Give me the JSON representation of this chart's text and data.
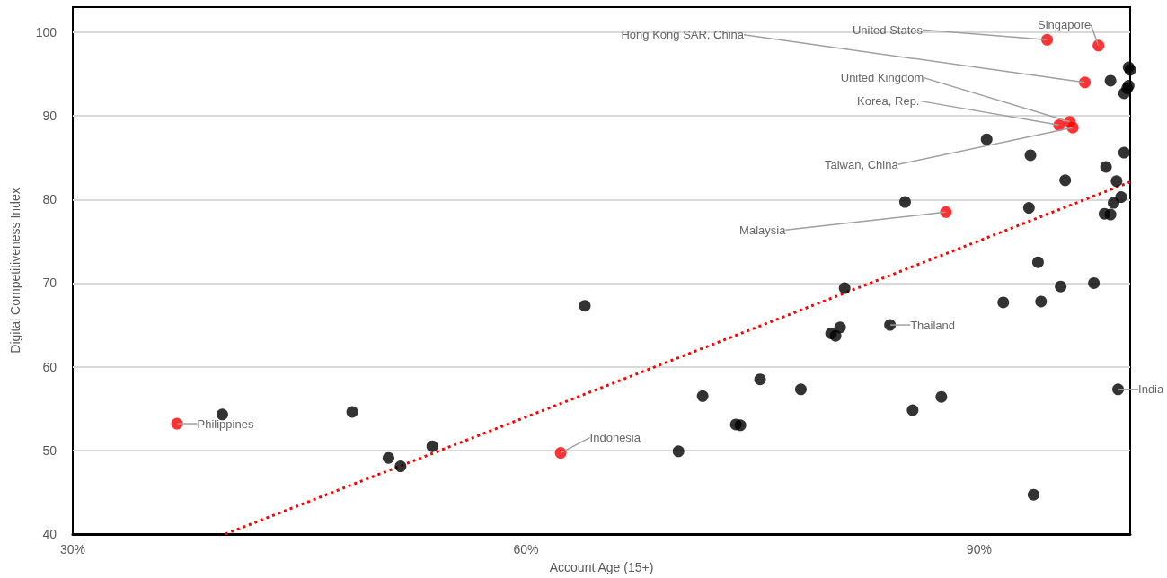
{
  "chart_data": {
    "type": "scatter",
    "xlabel": "Account Age (15+)",
    "ylabel": "Digital Competitiveness Index",
    "xlim": [
      30,
      100
    ],
    "xticks": [
      {
        "value": 30,
        "label": "30%"
      },
      {
        "value": 60,
        "label": "60%"
      },
      {
        "value": 90,
        "label": "90%"
      }
    ],
    "ylim": [
      40,
      103
    ],
    "yticks": [
      40,
      50,
      60,
      70,
      80,
      90,
      100
    ],
    "grid": "y",
    "marker": "circle",
    "series": [
      {
        "color": "#000000",
        "x": [
          39.9,
          48.5,
          50.9,
          51.7,
          53.8,
          63.9,
          70.1,
          71.7,
          73.9,
          74.2,
          75.5,
          78.2,
          80.2,
          80.5,
          80.8,
          81.1,
          84.1,
          85.1,
          85.6,
          87.5,
          90.5,
          91.6,
          93.3,
          93.4,
          93.6,
          93.9,
          94.1,
          95.4,
          95.7,
          98.7,
          97.6,
          98.3,
          98.4,
          98.7,
          98.9,
          99.1,
          99.2,
          99.4,
          99.6,
          99.6,
          99.8,
          99.9,
          99.9,
          100
        ],
        "values": [
          54.3,
          54.6,
          49.1,
          48.1,
          50.5,
          67.3,
          49.9,
          56.5,
          53.1,
          53.0,
          58.5,
          57.3,
          64.0,
          63.7,
          64.7,
          69.4,
          65.0,
          79.7,
          54.8,
          56.4,
          87.2,
          67.7,
          79.0,
          85.3,
          44.7,
          72.5,
          67.8,
          69.6,
          82.3,
          94.2,
          70.0,
          78.3,
          83.9,
          78.2,
          79.6,
          82.2,
          57.3,
          80.3,
          85.6,
          92.7,
          93.3,
          93.6,
          95.8,
          95.5
        ]
      },
      {
        "color": "#ff0000",
        "x": [
          36.9,
          62.3,
          87.8,
          94.5,
          97.9,
          97.0,
          96.0,
          95.3,
          96.2
        ],
        "values": [
          53.2,
          49.7,
          78.5,
          99.1,
          98.4,
          94.0,
          89.3,
          88.9,
          88.6
        ]
      },
      {
        "type": "line",
        "color": "#ff0000",
        "line_style": "dotted",
        "marker": "none",
        "x": [
          40.1,
          100
        ],
        "values": [
          40,
          82.1
        ]
      }
    ],
    "annotations": [
      {
        "text": "Philippines",
        "x": 36.9,
        "y": 53.2
      },
      {
        "text": "Indonesia",
        "x": 62.3,
        "y": 49.7
      },
      {
        "text": "Malaysia",
        "x": 87.8,
        "y": 78.5
      },
      {
        "text": "United States",
        "x": 94.5,
        "y": 99.1
      },
      {
        "text": "Singapore",
        "x": 97.9,
        "y": 98.4
      },
      {
        "text": "Hong Kong SAR, China",
        "x": 97.0,
        "y": 94.0
      },
      {
        "text": "United Kingdom",
        "x": 96.0,
        "y": 89.3
      },
      {
        "text": "Korea, Rep.",
        "x": 95.3,
        "y": 88.9
      },
      {
        "text": "Taiwan, China",
        "x": 96.2,
        "y": 88.6
      },
      {
        "text": "Thailand",
        "x": 84.1,
        "y": 65.0
      },
      {
        "text": "India",
        "x": 99.2,
        "y": 57.3
      }
    ]
  }
}
